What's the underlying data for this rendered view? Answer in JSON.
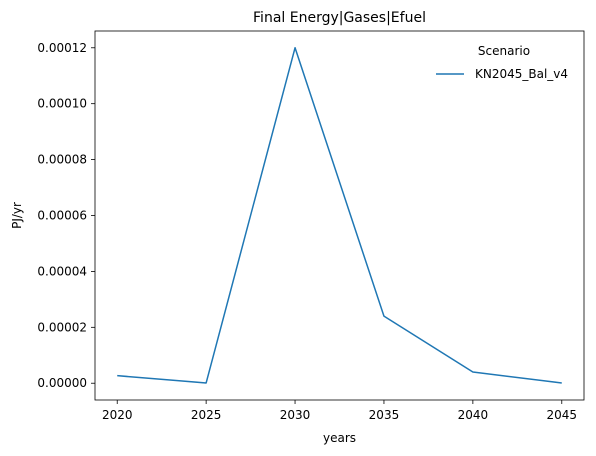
{
  "chart_data": {
    "type": "line",
    "title": "Final Energy|Gases|Efuel",
    "xlabel": "years",
    "ylabel": "PJ/yr",
    "x": [
      2020,
      2025,
      2030,
      2035,
      2040,
      2045
    ],
    "series": [
      {
        "name": "KN2045_Bal_v4",
        "color": "#1f77b4",
        "values": [
          2.7e-06,
          1e-07,
          0.00012,
          2.4e-05,
          4e-06,
          1e-07
        ]
      }
    ],
    "xticks": [
      "2020",
      "2025",
      "2030",
      "2035",
      "2040",
      "2045"
    ],
    "yticks": [
      0,
      2e-05,
      4e-05,
      6e-05,
      8e-05,
      0.0001,
      0.00012
    ],
    "ytick_labels": [
      "0.00000",
      "0.00002",
      "0.00004",
      "0.00006",
      "0.00008",
      "0.00010",
      "0.00012"
    ],
    "xlim": [
      2018.75,
      2046.25
    ],
    "ylim": [
      -6e-06,
      0.000126
    ],
    "legend": {
      "title": "Scenario",
      "placement": "top-right"
    },
    "grid": false
  }
}
